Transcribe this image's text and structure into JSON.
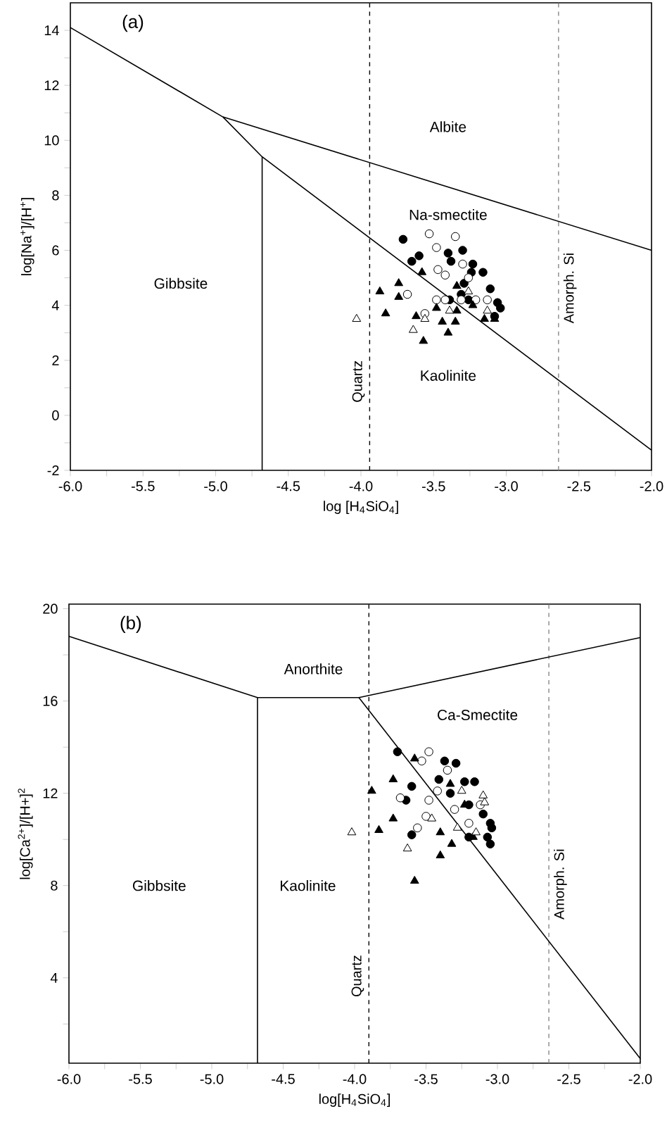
{
  "chart_data": [
    {
      "type": "scatter",
      "title": "(a)",
      "xlabel": "log [H$_{4}$SiO$_{4}$]",
      "ylabel": "log[Na$^{+}$]/[H$^{+}$]",
      "xlim": [
        -6,
        -2
      ],
      "ylim": [
        -2,
        15
      ],
      "xticks": [
        {
          "value": -6,
          "label": "-6.0"
        },
        {
          "value": -5.75,
          "label": null
        },
        {
          "value": -5.5,
          "label": "-5.5"
        },
        {
          "value": -5.25,
          "label": null
        },
        {
          "value": -5,
          "label": "-5.0"
        },
        {
          "value": -4.75,
          "label": null
        },
        {
          "value": -4.5,
          "label": "-4.5"
        },
        {
          "value": -4.25,
          "label": null
        },
        {
          "value": -4,
          "label": "-4.0"
        },
        {
          "value": -3.75,
          "label": null
        },
        {
          "value": -3.5,
          "label": "-3.5"
        },
        {
          "value": -3.25,
          "label": null
        },
        {
          "value": -3,
          "label": "-3.0"
        },
        {
          "value": -2.75,
          "label": null
        },
        {
          "value": -2.5,
          "label": "-2.5"
        },
        {
          "value": -2.25,
          "label": null
        },
        {
          "value": -2,
          "label": "-2.0"
        }
      ],
      "yticks": [
        -2,
        {
          "value": -1,
          "label": null
        },
        0,
        {
          "value": 1,
          "label": null
        },
        2,
        {
          "value": 3,
          "label": null
        },
        4,
        {
          "value": 5,
          "label": null
        },
        6,
        {
          "value": 7,
          "label": null
        },
        8,
        {
          "value": 9,
          "label": null
        },
        10,
        {
          "value": 11,
          "label": null
        },
        12,
        {
          "value": 13,
          "label": null
        },
        14
      ],
      "ref_lines": [
        {
          "axis": "x",
          "value": -3.94,
          "label": "Quartz",
          "color": "#000000",
          "line_style": "dashed"
        },
        {
          "axis": "x",
          "value": -2.64,
          "label": "Amorph. Si",
          "color": "#888888",
          "line_style": "dashed"
        }
      ],
      "annotations": [
        "Albite",
        "Na-smectite",
        "Gibbsite",
        "Kaolinite"
      ],
      "series": [
        {
          "type": "line",
          "color": "#000000",
          "x": [
            -6,
            -4.95,
            -2
          ],
          "values": [
            14.1,
            10.85,
            6.0
          ]
        },
        {
          "type": "line",
          "color": "#000000",
          "x": [
            -4.95,
            -4.68,
            -2
          ],
          "values": [
            10.85,
            9.4,
            -1.27
          ]
        },
        {
          "type": "line",
          "color": "#000000",
          "x": [
            -4.68,
            -4.68
          ],
          "values": [
            9.4,
            -2
          ]
        },
        {
          "marker": "circle",
          "color": "#000000",
          "x": [
            -3.71,
            -3.65,
            -3.6,
            -3.4,
            -3.38,
            -3.3,
            -3.23,
            -3.24,
            -3.16,
            -3.11,
            -3.29,
            -3.39,
            -3.26,
            -3.06,
            -3.04,
            -3.08,
            -3.13,
            -3.31
          ],
          "values": [
            6.4,
            5.6,
            5.8,
            5.9,
            5.6,
            6.0,
            5.5,
            5.2,
            5.2,
            4.6,
            4.8,
            4.2,
            4.2,
            4.1,
            3.9,
            3.6,
            null,
            4.4
          ]
        },
        {
          "marker": "circle",
          "color": "#ffffff",
          "x": [
            -3.53,
            -3.35,
            -3.48,
            -3.3,
            -3.47,
            -3.42,
            -3.68,
            -3.56,
            -3.26,
            -3.42,
            -3.31,
            -3.21,
            -3.13,
            -3.48
          ],
          "values": [
            6.6,
            6.5,
            6.1,
            5.5,
            5.3,
            5.1,
            4.4,
            3.7,
            5.0,
            4.2,
            4.2,
            4.2,
            4.2,
            4.2
          ]
        },
        {
          "marker": "triangle",
          "color": "#000000",
          "x": [
            -3.87,
            -3.74,
            -3.74,
            -3.83,
            -3.62,
            -3.57,
            -3.58,
            -3.34,
            -3.4,
            -3.44,
            -3.35,
            -3.23,
            -3.15,
            -3.08,
            -3.48,
            -3.34
          ],
          "values": [
            4.5,
            4.8,
            4.3,
            3.7,
            3.6,
            2.7,
            5.2,
            4.7,
            3.0,
            3.4,
            3.4,
            4.0,
            3.5,
            3.5,
            3.9,
            3.8
          ]
        },
        {
          "marker": "triangle",
          "color": "#ffffff",
          "x": [
            -4.03,
            -3.64,
            -3.56,
            -3.26,
            -3.13,
            -3.39
          ],
          "values": [
            3.5,
            3.1,
            3.5,
            4.5,
            3.8,
            3.8
          ]
        }
      ]
    },
    {
      "type": "scatter",
      "title": "(b)",
      "xlabel": "log[H$_{4}$SiO$_{4}$]",
      "ylabel": "log[Ca$^{2+}$]/[H+]$^{2}$",
      "xlim": [
        -6,
        -2
      ],
      "ylim": [
        0.3,
        20.2
      ],
      "xticks": [
        {
          "value": -6,
          "label": "-6.0"
        },
        {
          "value": -5.75,
          "label": null
        },
        {
          "value": -5.5,
          "label": "-5.5"
        },
        {
          "value": -5.25,
          "label": null
        },
        {
          "value": -5,
          "label": "-5.0"
        },
        {
          "value": -4.75,
          "label": null
        },
        {
          "value": -4.5,
          "label": "-4.5"
        },
        {
          "value": -4.25,
          "label": null
        },
        {
          "value": -4,
          "label": "-4.0"
        },
        {
          "value": -3.75,
          "label": null
        },
        {
          "value": -3.5,
          "label": "-3.5"
        },
        {
          "value": -3.25,
          "label": null
        },
        {
          "value": -3,
          "label": "-3.0"
        },
        {
          "value": -2.75,
          "label": null
        },
        {
          "value": -2.5,
          "label": "-2.5"
        },
        {
          "value": -2.25,
          "label": null
        },
        {
          "value": -2,
          "label": "-2.0"
        }
      ],
      "yticks": [
        {
          "value": 2,
          "label": null
        },
        4,
        {
          "value": 6,
          "label": null
        },
        8,
        {
          "value": 10,
          "label": null
        },
        12,
        {
          "value": 14,
          "label": null
        },
        16,
        {
          "value": 18,
          "label": null
        },
        20
      ],
      "ref_lines": [
        {
          "axis": "x",
          "value": -3.9,
          "label": "Quartz",
          "color": "#000000",
          "line_style": "dashed"
        },
        {
          "axis": "x",
          "value": -2.64,
          "label": "Amorph. Si",
          "color": "#888888",
          "line_style": "dashed"
        }
      ],
      "annotations": [
        "Anorthite",
        "Ca-Smectite",
        "Gibbsite",
        "Kaolinite"
      ],
      "series": [
        {
          "type": "line",
          "color": "#000000",
          "x": [
            -6,
            -4.68,
            -3.97,
            -2
          ],
          "values": [
            18.8,
            16.15,
            16.15,
            18.75
          ]
        },
        {
          "type": "line",
          "color": "#000000",
          "x": [
            -4.68,
            -4.68
          ],
          "values": [
            16.15,
            0.3
          ]
        },
        {
          "type": "line",
          "color": "#000000",
          "x": [
            -3.97,
            -2
          ],
          "values": [
            16.15,
            0.5
          ]
        },
        {
          "marker": "circle",
          "color": "#000000",
          "x": [
            -3.7,
            -3.6,
            -3.64,
            -3.37,
            -3.29,
            -3.41,
            -3.23,
            -3.16,
            -3.33,
            -3.2,
            -3.1,
            -3.05,
            -3.2,
            -3.07,
            -3.05,
            -3.04,
            -3.6
          ],
          "values": [
            13.8,
            12.3,
            11.7,
            13.4,
            13.3,
            12.6,
            12.5,
            12.5,
            12.0,
            11.5,
            11.1,
            10.7,
            10.1,
            10.1,
            9.8,
            10.5,
            10.2
          ]
        },
        {
          "marker": "circle",
          "color": "#ffffff",
          "x": [
            -3.48,
            -3.53,
            -3.35,
            -3.42,
            -3.68,
            -3.48,
            -3.56,
            -3.3,
            -3.2,
            -3.12,
            -3.5
          ],
          "values": [
            13.8,
            13.4,
            13.0,
            12.1,
            11.8,
            11.7,
            10.5,
            11.3,
            10.7,
            11.5,
            11.0
          ]
        },
        {
          "marker": "triangle",
          "color": "#000000",
          "x": [
            -3.58,
            -3.73,
            -3.88,
            -3.73,
            -3.83,
            -3.33,
            -3.4,
            -3.32,
            -3.4,
            -3.58,
            -3.23,
            -3.17
          ],
          "values": [
            13.5,
            12.6,
            12.1,
            10.9,
            10.4,
            12.4,
            10.3,
            9.8,
            9.3,
            8.2,
            11.5,
            10.1
          ]
        },
        {
          "marker": "triangle",
          "color": "#ffffff",
          "x": [
            -4.02,
            -3.63,
            -3.25,
            -3.1,
            -3.09,
            -3.28,
            -3.46,
            -3.15
          ],
          "values": [
            10.3,
            9.6,
            12.1,
            11.9,
            11.6,
            10.5,
            10.9,
            10.3
          ]
        }
      ]
    }
  ]
}
